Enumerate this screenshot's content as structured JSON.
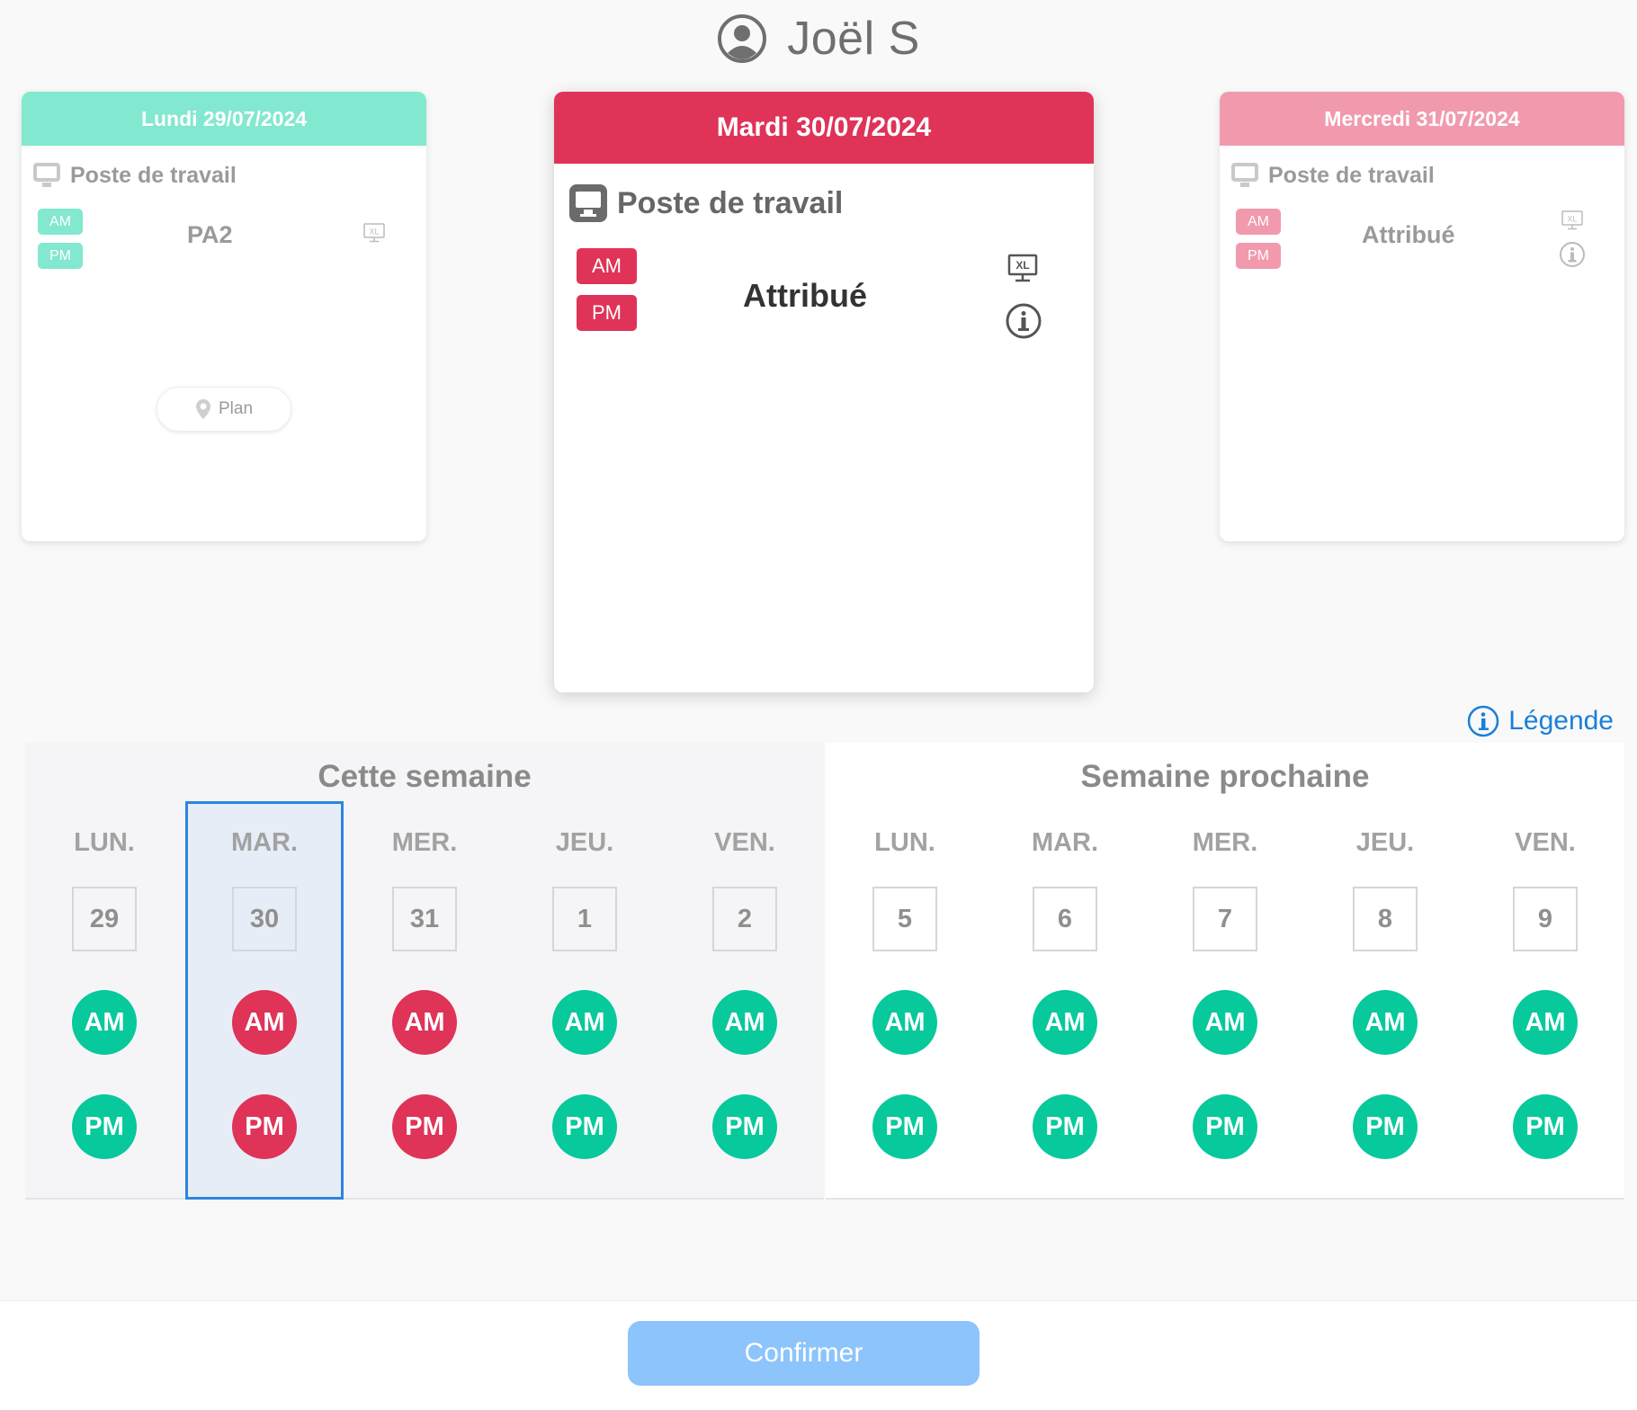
{
  "user": {
    "name": "Joël S"
  },
  "cards": {
    "left": {
      "title": "Lundi 29/07/2024",
      "section": "Poste de travail",
      "am": "AM",
      "pm": "PM",
      "value": "PA2",
      "plan": "Plan"
    },
    "center": {
      "title": "Mardi 30/07/2024",
      "section": "Poste de travail",
      "am": "AM",
      "pm": "PM",
      "value": "Attribué"
    },
    "right": {
      "title": "Mercredi 31/07/2024",
      "section": "Poste de travail",
      "am": "AM",
      "pm": "PM",
      "value": "Attribué"
    }
  },
  "legend": {
    "label": "Légende"
  },
  "weeks": {
    "this": {
      "title": "Cette semaine",
      "days": [
        {
          "label": "LUN.",
          "num": "29",
          "am": "AM",
          "pm": "PM"
        },
        {
          "label": "MAR.",
          "num": "30",
          "am": "AM",
          "pm": "PM"
        },
        {
          "label": "MER.",
          "num": "31",
          "am": "AM",
          "pm": "PM"
        },
        {
          "label": "JEU.",
          "num": "1",
          "am": "AM",
          "pm": "PM"
        },
        {
          "label": "VEN.",
          "num": "2",
          "am": "AM",
          "pm": "PM"
        }
      ]
    },
    "next": {
      "title": "Semaine prochaine",
      "days": [
        {
          "label": "LUN.",
          "num": "5",
          "am": "AM",
          "pm": "PM"
        },
        {
          "label": "MAR.",
          "num": "6",
          "am": "AM",
          "pm": "PM"
        },
        {
          "label": "MER.",
          "num": "7",
          "am": "AM",
          "pm": "PM"
        },
        {
          "label": "JEU.",
          "num": "8",
          "am": "AM",
          "pm": "PM"
        },
        {
          "label": "VEN.",
          "num": "9",
          "am": "AM",
          "pm": "PM"
        }
      ]
    }
  },
  "footer": {
    "confirm": "Confirmer"
  },
  "colors": {
    "free": "#07c99b",
    "busy": "#df3358",
    "selected_border": "#2a86e0",
    "accent": "#1a7fd9"
  }
}
